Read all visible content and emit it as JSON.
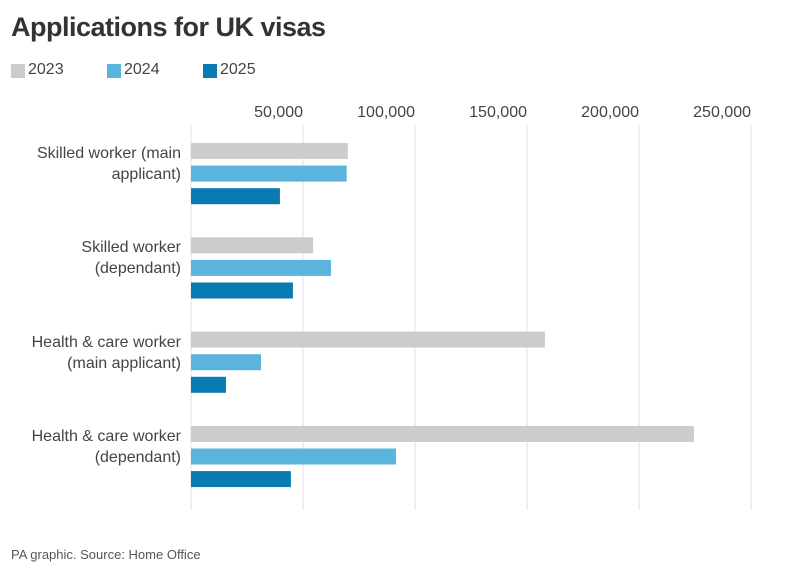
{
  "chart_data": {
    "type": "bar",
    "orientation": "horizontal",
    "title": "Applications for UK visas",
    "source": "PA graphic. Source: Home Office",
    "categories": [
      "Skilled worker (main\napplicant)",
      "Skilled worker\n(dependant)",
      "Health & care worker\n(main applicant)",
      "Health & care worker\n(dependant)"
    ],
    "series": [
      {
        "name": "2023",
        "color": "#cccccc",
        "values": [
          70000,
          54500,
          158000,
          224500
        ]
      },
      {
        "name": "2024",
        "color": "#5ab4dc",
        "values": [
          69500,
          62500,
          31250,
          91500
        ]
      },
      {
        "name": "2025",
        "color": "#0a7ab3",
        "values": [
          39700,
          45500,
          15600,
          44600
        ]
      }
    ],
    "xlim": [
      0,
      250000
    ],
    "xticks": [
      {
        "value": 50000,
        "label": "50,000"
      },
      {
        "value": 100000,
        "label": "100,000"
      },
      {
        "value": 150000,
        "label": "150,000"
      },
      {
        "value": 200000,
        "label": "200,000"
      },
      {
        "value": 250000,
        "label": "250,000"
      }
    ],
    "grid": true,
    "legend": "top-left"
  }
}
